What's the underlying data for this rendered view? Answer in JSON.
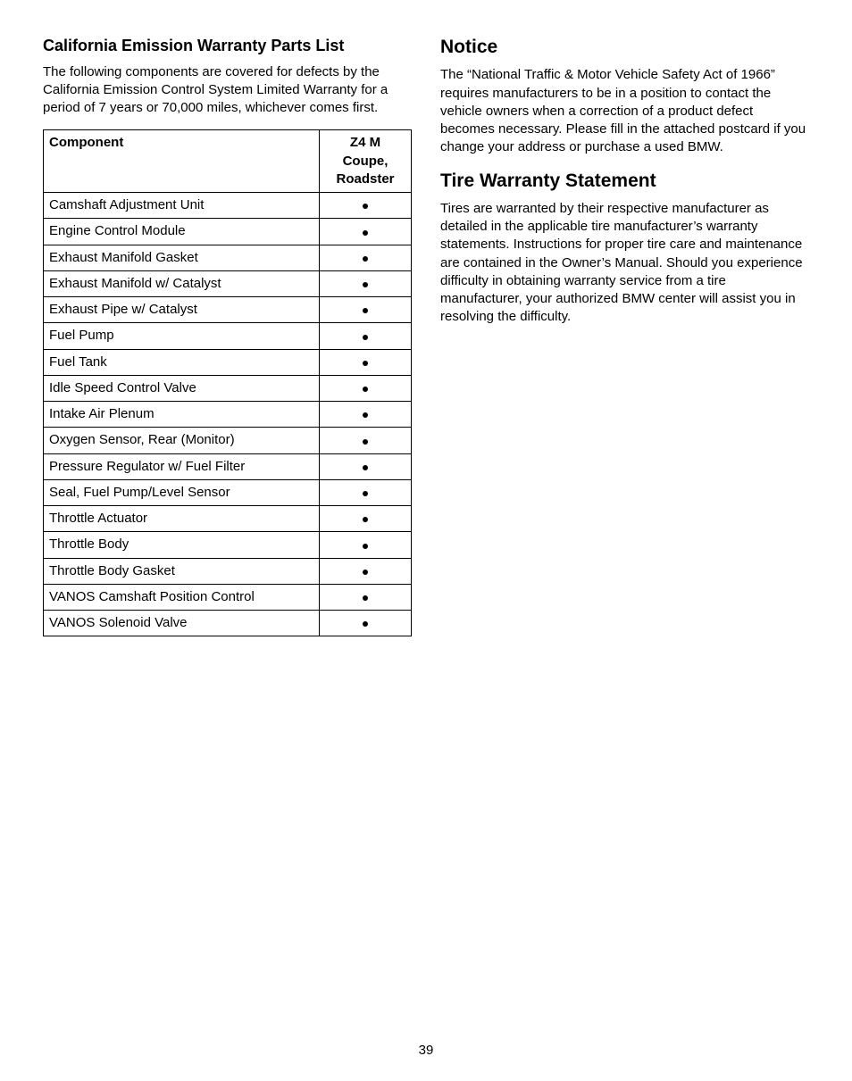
{
  "left": {
    "heading": "California Emission Warranty Parts List",
    "intro": "The following components are covered for defects by the California Emission Control System Limited Warranty for a period of 7 years or 70,000 miles, whichever comes first.",
    "table": {
      "col1_header": "Component",
      "col2_header": "Z4 M\nCoupe,\nRoadster",
      "rows": [
        "Camshaft Adjustment Unit",
        "Engine Control Module",
        "Exhaust Manifold Gasket",
        "Exhaust Manifold w/ Catalyst",
        "Exhaust Pipe w/ Catalyst",
        "Fuel Pump",
        "Fuel Tank",
        "Idle Speed Control Valve",
        "Intake Air Plenum",
        "Oxygen Sensor, Rear (Monitor)",
        "Pressure Regulator w/ Fuel Filter",
        "Seal, Fuel Pump/Level Sensor",
        "Throttle Actuator",
        "Throttle Body",
        "Throttle Body Gasket",
        "VANOS Camshaft Position Control",
        "VANOS Solenoid Valve"
      ]
    }
  },
  "right": {
    "notice_heading": "Notice",
    "notice_body": "The “National Traffic & Motor Vehicle Safety Act of 1966” requires manufacturers to be in a position to contact the vehicle owners when a correction of a product defect becomes necessary. Please fill in the attached postcard if you change your address or purchase a used BMW.",
    "tire_heading": "Tire Warranty Statement",
    "tire_body": "Tires are warranted by their respective manufacturer as detailed in the applicable tire manufacturer’s warranty statements. Instructions for proper tire care and maintenance are contained in the Owner’s Manual. Should you experience difficulty in obtaining warranty service from a tire manufacturer, your authorized BMW center will assist you in resolving the difficulty."
  },
  "page_number": "39"
}
